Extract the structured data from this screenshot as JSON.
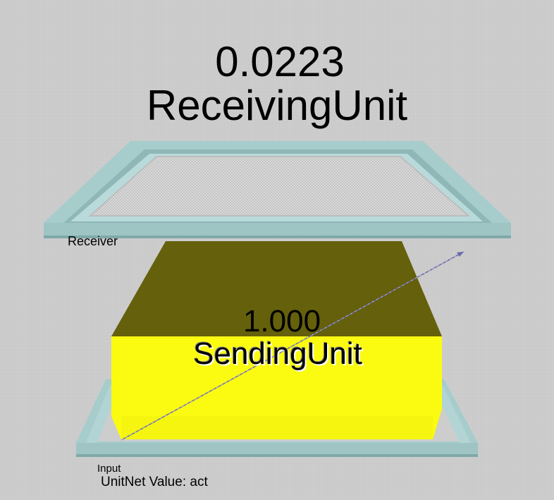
{
  "receiving_unit": {
    "value": "0.0223",
    "name": "ReceivingUnit"
  },
  "sending_unit": {
    "value": "1.000",
    "name": "SendingUnit"
  },
  "layers": {
    "receiver_label": "Receiver",
    "input_label": "Input"
  },
  "status": {
    "text": "UnitNet Value: act"
  },
  "colors": {
    "background": "#cdcdcd",
    "layer_frame": "#9fc9c9",
    "receiver_unit_fill": "#d6d6d6",
    "sending_unit_front": "#fbfb12",
    "sending_unit_top": "#65600b",
    "connection_line": "#6a6aa8"
  }
}
